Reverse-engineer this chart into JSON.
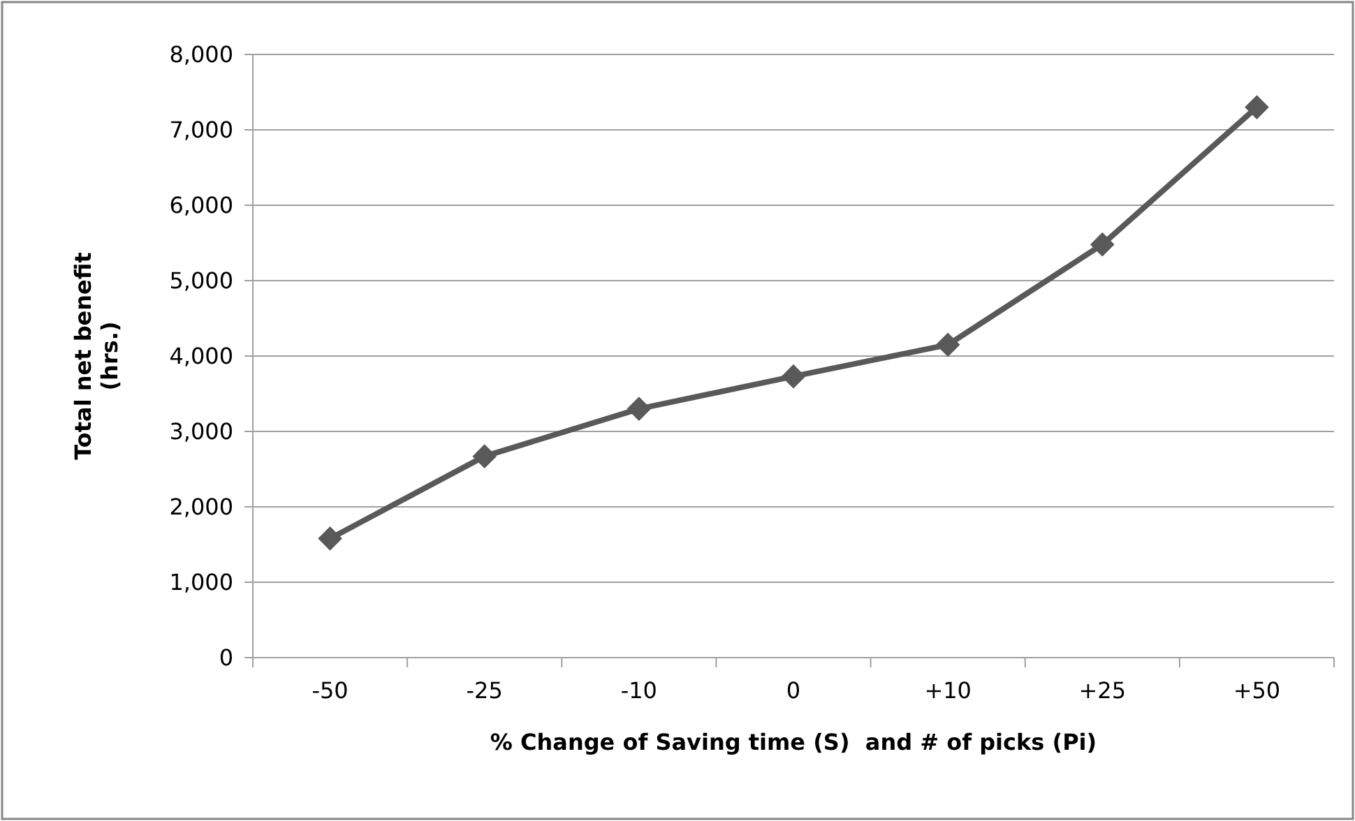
{
  "chart_data": {
    "type": "line",
    "xlabel": "% Change of Saving time (S)  and # of picks (Pi)",
    "ylabel": "Total net benefit (hrs.)",
    "categories": [
      "-50",
      "-25",
      "-10",
      "0",
      "+10",
      "+25",
      "+50"
    ],
    "series": [
      {
        "color": "#595959",
        "values": [
          1580,
          2670,
          3300,
          3730,
          4150,
          5480,
          7300
        ]
      }
    ],
    "ylim": [
      0,
      8000
    ],
    "yticks": [
      {
        "value": 0,
        "label": "0"
      },
      {
        "value": 1000,
        "label": "1,000"
      },
      {
        "value": 2000,
        "label": "2,000"
      },
      {
        "value": 3000,
        "label": "3,000"
      },
      {
        "value": 4000,
        "label": "4,000"
      },
      {
        "value": 5000,
        "label": "5,000"
      },
      {
        "value": 6000,
        "label": "6,000"
      },
      {
        "value": 7000,
        "label": "7,000"
      },
      {
        "value": 8000,
        "label": "8,000"
      }
    ],
    "grid": "y",
    "marker": "diamond",
    "line_style": "solid"
  }
}
